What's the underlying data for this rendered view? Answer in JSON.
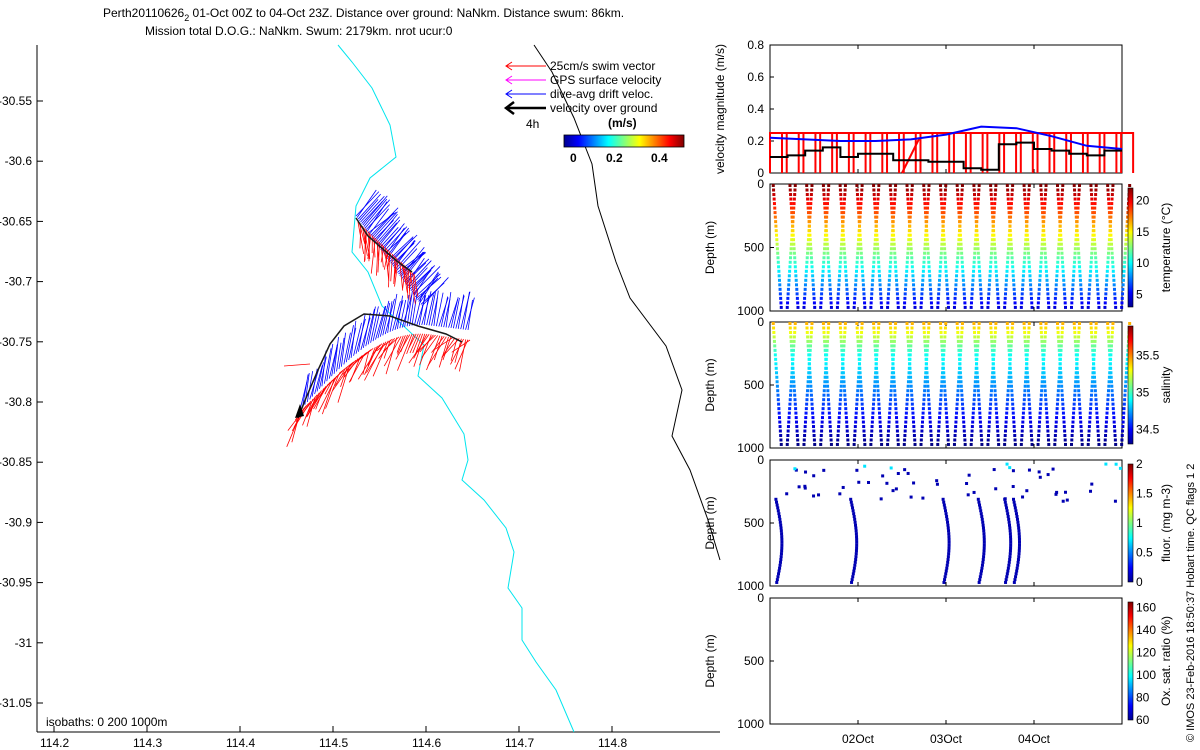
{
  "header": {
    "title_line1": "Perth20110626",
    "title_sub": "2",
    "title_line1_rest": " 01-Oct 00Z to 04-Oct 23Z. Distance over ground: NaNkm. Distance swum: 86km.",
    "title_line2": "Mission total D.O.G.: NaNkm. Swum: 2179km. nrot ucur:0"
  },
  "map": {
    "xticks": [
      "114.2",
      "114.3",
      "114.4",
      "114.5",
      "114.6",
      "114.7",
      "114.8"
    ],
    "yticks": [
      "-30.55",
      "-30.6",
      "-30.65",
      "-30.7",
      "-30.75",
      "-30.8",
      "-30.85",
      "-30.9",
      "-30.95",
      "-31",
      "-31.05"
    ],
    "isobath_label": "isobaths: 0   200  1000m",
    "legend": [
      {
        "label": "25cm/s swim vector",
        "color": "#ff0000"
      },
      {
        "label": "GPS surface velocity",
        "color": "#ff00ff"
      },
      {
        "label": "dive-avg drift veloc.",
        "color": "#0000ff"
      },
      {
        "label": "velocity over ground",
        "color": "#000000"
      }
    ],
    "scale_label": "4h",
    "colorbar_title": "(m/s)",
    "colorbar_ticks": [
      "0",
      "0.2",
      "0.4"
    ]
  },
  "date_labels": [
    "02Oct",
    "03Oct",
    "04Oct"
  ],
  "side_note": "© IMOS 23-Feb-2016 18:50:37 Hobart time. QC flags 1  2",
  "colors": {
    "swim": "#ff0000",
    "drift": "#0000ff",
    "ground": "#000000",
    "isobath0": "#00e5ee",
    "isobath1000": "#000000"
  },
  "chart_data": [
    {
      "type": "line",
      "title": "velocity magnitude",
      "ylabel": "velocity magnitude (m/s)",
      "ylim": [
        0,
        0.8
      ],
      "yticks": [
        "0",
        "0.2",
        "0.4",
        "0.6",
        "0.8"
      ],
      "xlim": [
        0,
        4
      ],
      "series": [
        {
          "name": "swim",
          "color": "#ff0000",
          "x": [
            0,
            0.1,
            0.3,
            0.5,
            0.7,
            0.9,
            1.1,
            1.3,
            1.5,
            1.7,
            1.9,
            2.1,
            2.3,
            2.5,
            2.7,
            2.9,
            3.1,
            3.3,
            3.5,
            3.7,
            3.9,
            4.0
          ],
          "y": [
            0.25,
            0.25,
            0.25,
            0.25,
            0.25,
            0.25,
            0.25,
            0.25,
            0.25,
            0.05,
            0.25,
            0.25,
            0.25,
            0.25,
            0.25,
            0.25,
            0.25,
            0.25,
            0.25,
            0.25,
            0.25,
            0.25
          ]
        },
        {
          "name": "drift",
          "color": "#0000ff",
          "x": [
            0,
            0.4,
            0.8,
            1.2,
            1.6,
            2.0,
            2.4,
            2.8,
            3.2,
            3.6,
            4.0
          ],
          "y": [
            0.22,
            0.21,
            0.2,
            0.2,
            0.21,
            0.24,
            0.29,
            0.28,
            0.23,
            0.17,
            0.15
          ]
        },
        {
          "name": "ground",
          "color": "#000000",
          "x": [
            0,
            0.2,
            0.4,
            0.6,
            0.8,
            1.0,
            1.2,
            1.4,
            1.6,
            1.8,
            2.0,
            2.2,
            2.4,
            2.6,
            2.8,
            3.0,
            3.2,
            3.4,
            3.6,
            3.8,
            4.0
          ],
          "y": [
            0.1,
            0.11,
            0.14,
            0.16,
            0.1,
            0.12,
            0.12,
            0.08,
            0.08,
            0.07,
            0.07,
            0.03,
            0.02,
            0.18,
            0.19,
            0.15,
            0.14,
            0.12,
            0.11,
            0.14,
            0.15
          ]
        }
      ]
    },
    {
      "type": "scatter",
      "title": "temperature profile",
      "ylabel": "Depth (m)",
      "ylim": [
        1000,
        0
      ],
      "yticks": [
        "0",
        "500",
        "1000"
      ],
      "colorbar_label": "temperature (°C)",
      "colorbar_ticks": [
        "20",
        "15",
        "10",
        "5"
      ],
      "colorbar_range": [
        3,
        22
      ],
      "dives": 20,
      "max_depth": 980,
      "gap_days": [
        1.25,
        1.35
      ]
    },
    {
      "type": "scatter",
      "title": "salinity profile",
      "ylabel": "Depth (m)",
      "ylim": [
        1000,
        0
      ],
      "yticks": [
        "0",
        "500",
        "1000"
      ],
      "colorbar_label": "salinity",
      "colorbar_ticks": [
        "35.5",
        "35",
        "34.5"
      ],
      "colorbar_range": [
        34.3,
        35.9
      ],
      "dives": 20,
      "max_depth": 980
    },
    {
      "type": "scatter",
      "title": "fluorescence profile",
      "ylabel": "Depth (m)",
      "ylim": [
        1000,
        0
      ],
      "yticks": [
        "0",
        "500",
        "1000"
      ],
      "colorbar_label": "fluor. (mg m-3)",
      "colorbar_ticks": [
        "2",
        "1.5",
        "1",
        "0.5",
        "0"
      ],
      "colorbar_range": [
        0,
        2
      ],
      "deep_dives_days": [
        0.05,
        0.9,
        1.95,
        2.35,
        2.65,
        2.75
      ]
    },
    {
      "type": "scatter",
      "title": "oxygen saturation",
      "ylabel": "Depth (m)",
      "ylim": [
        1000,
        0
      ],
      "yticks": [
        "0",
        "500",
        "1000"
      ],
      "colorbar_label": "Ox. sat. ratio (%)",
      "colorbar_ticks": [
        "160",
        "140",
        "120",
        "100",
        "80",
        "60"
      ],
      "colorbar_range": [
        60,
        165
      ]
    }
  ]
}
